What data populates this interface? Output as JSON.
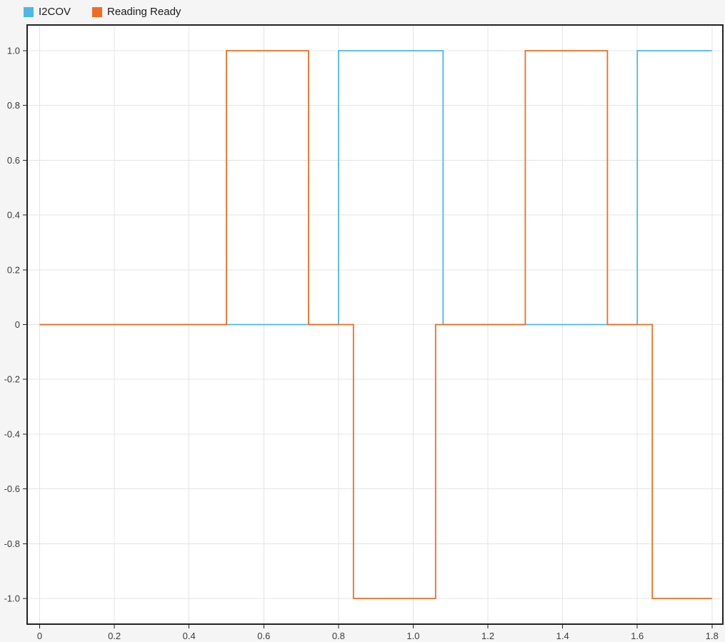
{
  "legend": {
    "items": [
      {
        "label": "I2COV",
        "color": "#4DB7E8"
      },
      {
        "label": "Reading Ready",
        "color": "#F06C23"
      }
    ]
  },
  "chart_data": {
    "type": "line",
    "subtype": "step-signal-trace",
    "title": "",
    "xlabel": "",
    "ylabel": "",
    "xlim": [
      -0.0335,
      1.829
    ],
    "ylim": [
      -1.094,
      1.094
    ],
    "grid": true,
    "legend_position": "top-left",
    "xticks": [
      0,
      0.2,
      0.4,
      0.6,
      0.8,
      1.0,
      1.2,
      1.4,
      1.6,
      1.8
    ],
    "xtick_labels": [
      "0",
      "0.2",
      "0.4",
      "0.6",
      "0.8",
      "1.0",
      "1.2",
      "1.4",
      "1.6",
      "1.8"
    ],
    "yticks": [
      -1.0,
      -0.8,
      -0.6,
      -0.4,
      -0.2,
      0,
      0.2,
      0.4,
      0.6,
      0.8,
      1.0
    ],
    "ytick_labels": [
      "-1.0",
      "-0.8",
      "-0.6",
      "-0.4",
      "-0.2",
      "0",
      "0.2",
      "0.4",
      "0.6",
      "0.8",
      "1.0"
    ],
    "series": [
      {
        "name": "I2COV",
        "color": "#4DB7E8",
        "points": [
          [
            0,
            0
          ],
          [
            0.8,
            0
          ],
          [
            0.8,
            1
          ],
          [
            1.08,
            1
          ],
          [
            1.08,
            0
          ],
          [
            1.6,
            0
          ],
          [
            1.6,
            1
          ],
          [
            1.8,
            1
          ]
        ]
      },
      {
        "name": "Reading Ready",
        "color": "#F06C23",
        "points": [
          [
            0,
            0
          ],
          [
            0.5,
            0
          ],
          [
            0.5,
            1
          ],
          [
            0.72,
            1
          ],
          [
            0.72,
            0
          ],
          [
            0.84,
            0
          ],
          [
            0.84,
            -1
          ],
          [
            1.06,
            -1
          ],
          [
            1.06,
            0
          ],
          [
            1.3,
            0
          ],
          [
            1.3,
            1
          ],
          [
            1.52,
            1
          ],
          [
            1.52,
            0
          ],
          [
            1.64,
            0
          ],
          [
            1.64,
            -1
          ],
          [
            1.8,
            -1
          ]
        ]
      }
    ],
    "colors": {
      "background": "#F5F5F5",
      "plot_background": "#FFFFFF",
      "gridline": "#E4E4E4",
      "axis_border": "#232323",
      "tick_label": "#3C3C3C",
      "legend_text": "#1A1A1A"
    }
  }
}
